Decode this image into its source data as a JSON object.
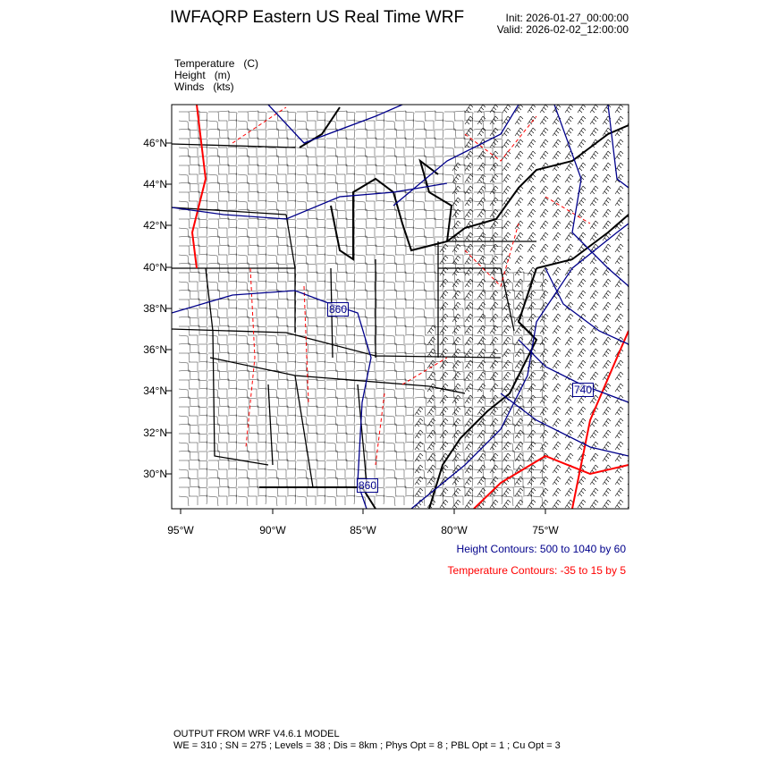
{
  "header": {
    "title": "IWFAQRP Eastern US Real Time WRF",
    "init": "Init: 2026-01-27_00:00:00",
    "valid": "Valid: 2026-02-02_12:00:00"
  },
  "fields": [
    "Temperature   (C)",
    "Height   (m)",
    "Winds   (kts)"
  ],
  "map": {
    "lat_labels": [
      "46°N",
      "44°N",
      "42°N",
      "40°N",
      "38°N",
      "36°N",
      "34°N",
      "32°N",
      "30°N"
    ],
    "lon_labels": [
      "95°W",
      "90°W",
      "85°W",
      "80°W",
      "75°W"
    ],
    "height_contour_labels": [
      "860",
      "860",
      "740"
    ],
    "colors": {
      "height": "#00008b",
      "temperature": "#ff0000",
      "borders": "#000000"
    }
  },
  "legend": {
    "height": "Height Contours: 500 to 1040 by 60",
    "temperature": "Temperature Contours: -35 to 15 by 5"
  },
  "footer": {
    "line1": "OUTPUT FROM WRF V4.6.1 MODEL",
    "line2": "WE = 310 ; SN = 275 ; Levels = 38 ; Dis = 8km ; Phys Opt = 8 ; PBL Opt = 1 ; Cu Opt = 3"
  }
}
